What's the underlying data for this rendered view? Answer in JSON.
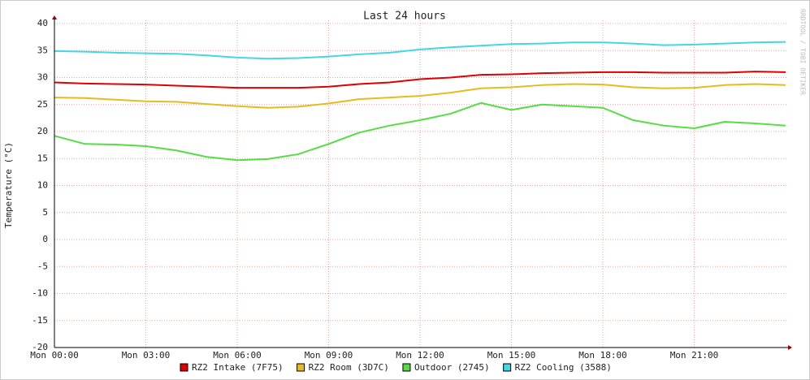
{
  "chart_data": {
    "type": "line",
    "title": "Last 24 hours",
    "y_label": "Temperature (°C)",
    "watermark": "RRDTOOL / TOBI OETIKER",
    "x": [
      0,
      1,
      2,
      3,
      4,
      5,
      6,
      7,
      8,
      9,
      10,
      11,
      12,
      13,
      14,
      15,
      16,
      17,
      18,
      19,
      20,
      21,
      22,
      23,
      24
    ],
    "xlim": [
      0,
      24
    ],
    "xticks": [
      {
        "value": 0,
        "label": "Mon 00:00"
      },
      {
        "value": 3,
        "label": "Mon 03:00"
      },
      {
        "value": 6,
        "label": "Mon 06:00"
      },
      {
        "value": 9,
        "label": "Mon 09:00"
      },
      {
        "value": 12,
        "label": "Mon 12:00"
      },
      {
        "value": 15,
        "label": "Mon 15:00"
      },
      {
        "value": 18,
        "label": "Mon 18:00"
      },
      {
        "value": 21,
        "label": "Mon 21:00"
      }
    ],
    "ylim": [
      -20,
      40
    ],
    "yticks": [
      -20,
      -15,
      -10,
      -5,
      0,
      5,
      10,
      15,
      20,
      25,
      30,
      35,
      40
    ],
    "grid": true,
    "legend": "bottom",
    "series": [
      {
        "name": "RZ2 Intake (7F75)",
        "color": "#e00000",
        "values": [
          29.1,
          28.9,
          28.8,
          28.7,
          28.5,
          28.3,
          28.1,
          28.1,
          28.1,
          28.3,
          28.8,
          29.1,
          29.7,
          30.0,
          30.5,
          30.6,
          30.8,
          30.9,
          31.0,
          31.0,
          30.9,
          30.9,
          30.9,
          31.1,
          31.0
        ]
      },
      {
        "name": "RZ2 Room (3D7C)",
        "color": "#e6bb22",
        "values": [
          26.3,
          26.2,
          25.9,
          25.6,
          25.5,
          25.1,
          24.7,
          24.4,
          24.6,
          25.2,
          26.0,
          26.3,
          26.6,
          27.2,
          28.0,
          28.2,
          28.6,
          28.8,
          28.7,
          28.2,
          28.0,
          28.1,
          28.6,
          28.8,
          28.6
        ]
      },
      {
        "name": "Outdoor (2745)",
        "color": "#55dd44",
        "values": [
          19.2,
          17.7,
          17.6,
          17.3,
          16.5,
          15.3,
          14.7,
          14.9,
          15.8,
          17.7,
          19.8,
          21.1,
          22.1,
          23.3,
          25.3,
          24.0,
          25.0,
          24.7,
          24.4,
          22.1,
          21.1,
          20.6,
          21.8,
          21.5,
          21.1
        ]
      },
      {
        "name": "RZ2 Cooling (3588)",
        "color": "#44d6e6",
        "values": [
          34.9,
          34.8,
          34.6,
          34.5,
          34.4,
          34.1,
          33.7,
          33.5,
          33.6,
          33.9,
          34.3,
          34.6,
          35.2,
          35.6,
          35.9,
          36.2,
          36.3,
          36.5,
          36.5,
          36.3,
          36.0,
          36.1,
          36.3,
          36.5,
          36.6
        ]
      }
    ]
  }
}
